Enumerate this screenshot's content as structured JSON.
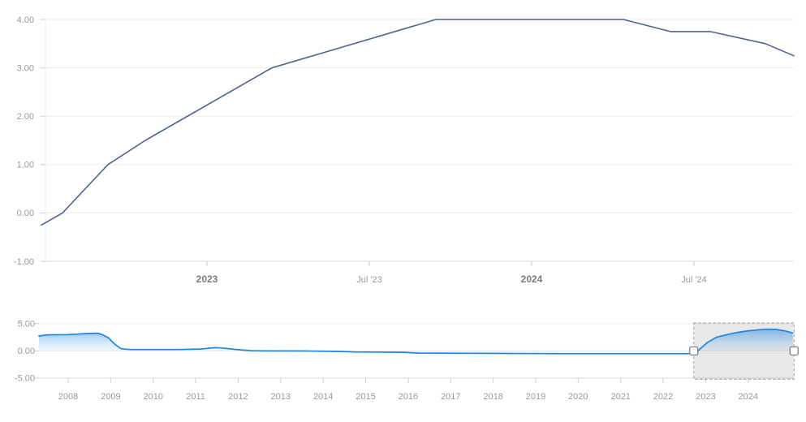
{
  "colors": {
    "background": "#ffffff",
    "main_line": "#50648a",
    "nav_line": "#1d87e0",
    "nav_fill_top": "rgba(30,135,224,0.50)",
    "nav_fill_mid": "rgba(30,135,224,0.16)",
    "nav_fill_bottom": "rgba(30,135,224,0.03)",
    "grid": "#ececec",
    "axis": "#dddddd",
    "tick": "#cccccc",
    "label": "#9a9a9a",
    "label_bold": "#7b7b7b",
    "selection_fill": "rgba(0,0,0,0.085)",
    "selection_border": "#9a9a9a",
    "handle_fill": "#ffffff",
    "handle_border": "#8a8a8a"
  },
  "chart_data": [
    {
      "id": "main",
      "type": "line",
      "title": "",
      "xlabel": "",
      "ylabel": "",
      "x_unit": "decimal_year",
      "xlim": [
        2022.5,
        2024.81
      ],
      "ylim": [
        -1,
        4
      ],
      "grid": "horizontal",
      "legend": "none",
      "y_ticks": [
        {
          "v": 4,
          "label": "4.00"
        },
        {
          "v": 3,
          "label": "3.00"
        },
        {
          "v": 2,
          "label": "2.00"
        },
        {
          "v": 1,
          "label": "1.00"
        },
        {
          "v": 0,
          "label": "0.00"
        },
        {
          "v": -1,
          "label": "-1.00"
        }
      ],
      "x_ticks": [
        {
          "v": 2023.0,
          "label": "2023",
          "bold": true
        },
        {
          "v": 2023.5,
          "label": "Jul '23",
          "bold": false
        },
        {
          "v": 2024.0,
          "label": "2024",
          "bold": true
        },
        {
          "v": 2024.5,
          "label": "Jul '24",
          "bold": false
        }
      ],
      "series": [
        {
          "name": "rate-line",
          "points": [
            [
              2022.49,
              -0.25
            ],
            [
              2022.555,
              0.0
            ],
            [
              2022.695,
              1.0
            ],
            [
              2022.81,
              1.5
            ],
            [
              2023.2,
              3.0
            ],
            [
              2023.705,
              4.0
            ],
            [
              2024.2825,
              4.0
            ],
            [
              2024.4275,
              3.75
            ],
            [
              2024.55,
              3.75
            ],
            [
              2024.72,
              3.5
            ],
            [
              2024.8075,
              3.25
            ]
          ]
        }
      ]
    },
    {
      "id": "navigator",
      "type": "area",
      "title": "",
      "xlabel": "",
      "ylabel": "",
      "x_unit": "decimal_year",
      "xlim": [
        2007.31,
        2025.08
      ],
      "ylim": [
        -5,
        5
      ],
      "grid": "horizontal",
      "legend": "none",
      "y_ticks": [
        {
          "v": 5,
          "label": "5.00"
        },
        {
          "v": 0,
          "label": "0.00"
        },
        {
          "v": -5,
          "label": "-5.00"
        }
      ],
      "x_ticks": [
        {
          "v": 2008,
          "label": "2008"
        },
        {
          "v": 2009,
          "label": "2009"
        },
        {
          "v": 2010,
          "label": "2010"
        },
        {
          "v": 2011,
          "label": "2011"
        },
        {
          "v": 2012,
          "label": "2012"
        },
        {
          "v": 2013,
          "label": "2013"
        },
        {
          "v": 2014,
          "label": "2014"
        },
        {
          "v": 2015,
          "label": "2015"
        },
        {
          "v": 2016,
          "label": "2016"
        },
        {
          "v": 2017,
          "label": "2017"
        },
        {
          "v": 2018,
          "label": "2018"
        },
        {
          "v": 2019,
          "label": "2019"
        },
        {
          "v": 2020,
          "label": "2020"
        },
        {
          "v": 2021,
          "label": "2021"
        },
        {
          "v": 2022,
          "label": "2022"
        },
        {
          "v": 2023,
          "label": "2023"
        },
        {
          "v": 2024,
          "label": "2024"
        }
      ],
      "series": [
        {
          "name": "navigator-line",
          "points": [
            [
              2007.31,
              2.75
            ],
            [
              2007.5,
              2.95
            ],
            [
              2008.0,
              3.0
            ],
            [
              2008.45,
              3.2
            ],
            [
              2008.7,
              3.25
            ],
            [
              2008.8,
              3.0
            ],
            [
              2008.95,
              2.4
            ],
            [
              2009.1,
              1.2
            ],
            [
              2009.25,
              0.4
            ],
            [
              2009.45,
              0.25
            ],
            [
              2010.6,
              0.25
            ],
            [
              2011.1,
              0.35
            ],
            [
              2011.45,
              0.6
            ],
            [
              2011.6,
              0.55
            ],
            [
              2011.9,
              0.3
            ],
            [
              2012.3,
              0.05
            ],
            [
              2012.6,
              0.0
            ],
            [
              2013.6,
              -0.02
            ],
            [
              2014.4,
              -0.1
            ],
            [
              2014.75,
              -0.2
            ],
            [
              2015.9,
              -0.25
            ],
            [
              2016.25,
              -0.4
            ],
            [
              2019.7,
              -0.5
            ],
            [
              2022.55,
              -0.5
            ],
            [
              2022.76,
              -0.45
            ],
            [
              2022.9,
              0.6
            ],
            [
              2023.05,
              1.6
            ],
            [
              2023.25,
              2.5
            ],
            [
              2023.5,
              3.0
            ],
            [
              2023.75,
              3.4
            ],
            [
              2024.0,
              3.7
            ],
            [
              2024.25,
              3.9
            ],
            [
              2024.45,
              4.0
            ],
            [
              2024.65,
              3.95
            ],
            [
              2024.85,
              3.7
            ],
            [
              2025.05,
              3.3
            ]
          ]
        }
      ],
      "selection": {
        "from": 2022.72,
        "to": 2025.08
      }
    }
  ]
}
